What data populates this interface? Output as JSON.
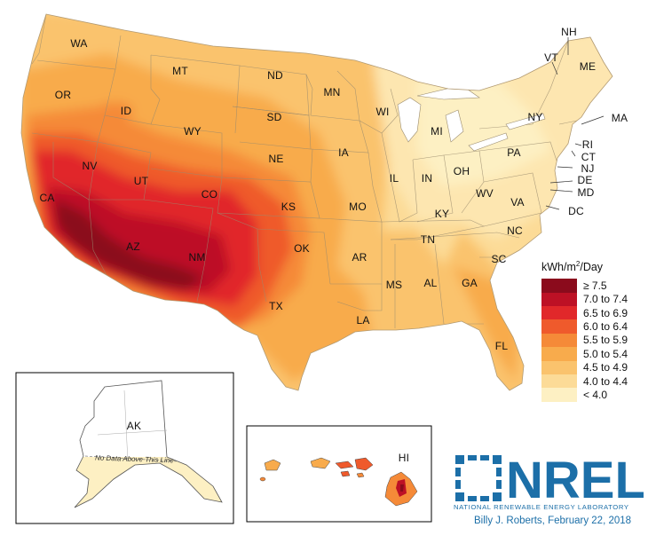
{
  "states": {
    "WA": "WA",
    "OR": "OR",
    "CA": "CA",
    "NV": "NV",
    "ID": "ID",
    "MT": "MT",
    "WY": "WY",
    "UT": "UT",
    "AZ": "AZ",
    "CO": "CO",
    "NM": "NM",
    "ND": "ND",
    "SD": "SD",
    "NE": "NE",
    "KS": "KS",
    "OK": "OK",
    "TX": "TX",
    "MN": "MN",
    "IA": "IA",
    "MO": "MO",
    "AR": "AR",
    "LA": "LA",
    "WI": "WI",
    "IL": "IL",
    "MI": "MI",
    "IN": "IN",
    "OH": "OH",
    "KY": "KY",
    "TN": "TN",
    "MS": "MS",
    "AL": "AL",
    "GA": "GA",
    "FL": "FL",
    "SC": "SC",
    "NC": "NC",
    "VA": "VA",
    "WV": "WV",
    "PA": "PA",
    "NY": "NY",
    "VT": "VT",
    "NH": "NH",
    "ME": "ME",
    "MA": "MA",
    "RI": "RI",
    "CT": "CT",
    "NJ": "NJ",
    "DE": "DE",
    "MD": "MD",
    "DC": "DC",
    "AK": "AK",
    "HI": "HI"
  },
  "legend": {
    "title_pre": "kWh/m",
    "title_sup": "2",
    "title_post": "/Day",
    "classes": [
      {
        "label": "≥ 7.5",
        "color": "#8b0b1c"
      },
      {
        "label": "7.0 to 7.4",
        "color": "#bd1125"
      },
      {
        "label": "6.5 to 6.9",
        "color": "#e1282a"
      },
      {
        "label": "6.0 to 6.4",
        "color": "#ef5a2c"
      },
      {
        "label": "5.5 to 5.9",
        "color": "#f58a38"
      },
      {
        "label": "5.0 to 5.4",
        "color": "#f8ab4c"
      },
      {
        "label": "4.5 to 4.9",
        "color": "#fac36d"
      },
      {
        "label": "4.0 to 4.4",
        "color": "#fcdb97"
      },
      {
        "label": "< 4.0",
        "color": "#fdf0c3"
      }
    ]
  },
  "alaska_note": "No Data Above This Line",
  "logo": {
    "text": "NREL",
    "subtitle": "NATIONAL RENEWABLE ENERGY LABORATORY"
  },
  "credit": "Billy J. Roberts, February 22, 2018"
}
